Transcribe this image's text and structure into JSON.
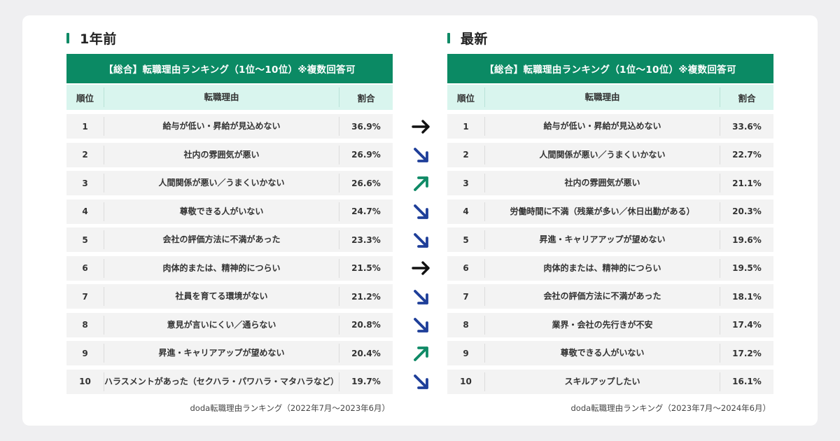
{
  "left": {
    "heading": "1年前",
    "table_title": "【総合】転職理由ランキング（1位〜10位）※複数回答可",
    "headers": {
      "rank": "順位",
      "reason": "転職理由",
      "pct": "割合"
    },
    "rows": [
      {
        "rank": "1",
        "reason": "給与が低い・昇給が見込めない",
        "pct": "36.9%"
      },
      {
        "rank": "2",
        "reason": "社内の雰囲気が悪い",
        "pct": "26.9%"
      },
      {
        "rank": "3",
        "reason": "人間関係が悪い／うまくいかない",
        "pct": "26.6%"
      },
      {
        "rank": "4",
        "reason": "尊敬できる人がいない",
        "pct": "24.7%"
      },
      {
        "rank": "5",
        "reason": "会社の評価方法に不満があった",
        "pct": "23.3%"
      },
      {
        "rank": "6",
        "reason": "肉体的または、精神的につらい",
        "pct": "21.5%"
      },
      {
        "rank": "7",
        "reason": "社員を育てる環境がない",
        "pct": "21.2%"
      },
      {
        "rank": "8",
        "reason": "意見が言いにくい／通らない",
        "pct": "20.8%"
      },
      {
        "rank": "9",
        "reason": "昇進・キャリアアップが望めない",
        "pct": "20.4%"
      },
      {
        "rank": "10",
        "reason": "ハラスメントがあった（セクハラ・パワハラ・マタハラなど）",
        "pct": "19.7%"
      }
    ],
    "source": "doda転職理由ランキング（2022年7月〜2023年6月）"
  },
  "right": {
    "heading": "最新",
    "table_title": "【総合】転職理由ランキング（1位〜10位）※複数回答可",
    "headers": {
      "rank": "順位",
      "reason": "転職理由",
      "pct": "割合"
    },
    "rows": [
      {
        "rank": "1",
        "reason": "給与が低い・昇給が見込めない",
        "pct": "33.6%"
      },
      {
        "rank": "2",
        "reason": "人間関係が悪い／うまくいかない",
        "pct": "22.7%"
      },
      {
        "rank": "3",
        "reason": "社内の雰囲気が悪い",
        "pct": "21.1%"
      },
      {
        "rank": "4",
        "reason": "労働時間に不満（残業が多い／休日出勤がある）",
        "pct": "20.3%"
      },
      {
        "rank": "5",
        "reason": "昇進・キャリアアップが望めない",
        "pct": "19.6%"
      },
      {
        "rank": "6",
        "reason": "肉体的または、精神的につらい",
        "pct": "19.5%"
      },
      {
        "rank": "7",
        "reason": "会社の評価方法に不満があった",
        "pct": "18.1%"
      },
      {
        "rank": "8",
        "reason": "業界・会社の先行きが不安",
        "pct": "17.4%"
      },
      {
        "rank": "9",
        "reason": "尊敬できる人がいない",
        "pct": "17.2%"
      },
      {
        "rank": "10",
        "reason": "スキルアップしたい",
        "pct": "16.1%"
      }
    ],
    "source": "doda転職理由ランキング（2023年7月〜2024年6月）"
  },
  "trend_arrows": [
    {
      "direction": "flat",
      "icon": "arrow-right-icon",
      "color": "#111111"
    },
    {
      "direction": "down",
      "icon": "arrow-down-right-icon",
      "color": "#1f3f99"
    },
    {
      "direction": "up",
      "icon": "arrow-up-right-icon",
      "color": "#0f8a66"
    },
    {
      "direction": "down",
      "icon": "arrow-down-right-icon",
      "color": "#1f3f99"
    },
    {
      "direction": "down",
      "icon": "arrow-down-right-icon",
      "color": "#1f3f99"
    },
    {
      "direction": "flat",
      "icon": "arrow-right-icon",
      "color": "#111111"
    },
    {
      "direction": "down",
      "icon": "arrow-down-right-icon",
      "color": "#1f3f99"
    },
    {
      "direction": "down",
      "icon": "arrow-down-right-icon",
      "color": "#1f3f99"
    },
    {
      "direction": "up",
      "icon": "arrow-up-right-icon",
      "color": "#0f8a66"
    },
    {
      "direction": "down",
      "icon": "arrow-down-right-icon",
      "color": "#1f3f99"
    }
  ],
  "colors": {
    "accent": "#0b8a64",
    "header_bg": "#d9f5ee",
    "row_bg": "#f3f3f3"
  }
}
